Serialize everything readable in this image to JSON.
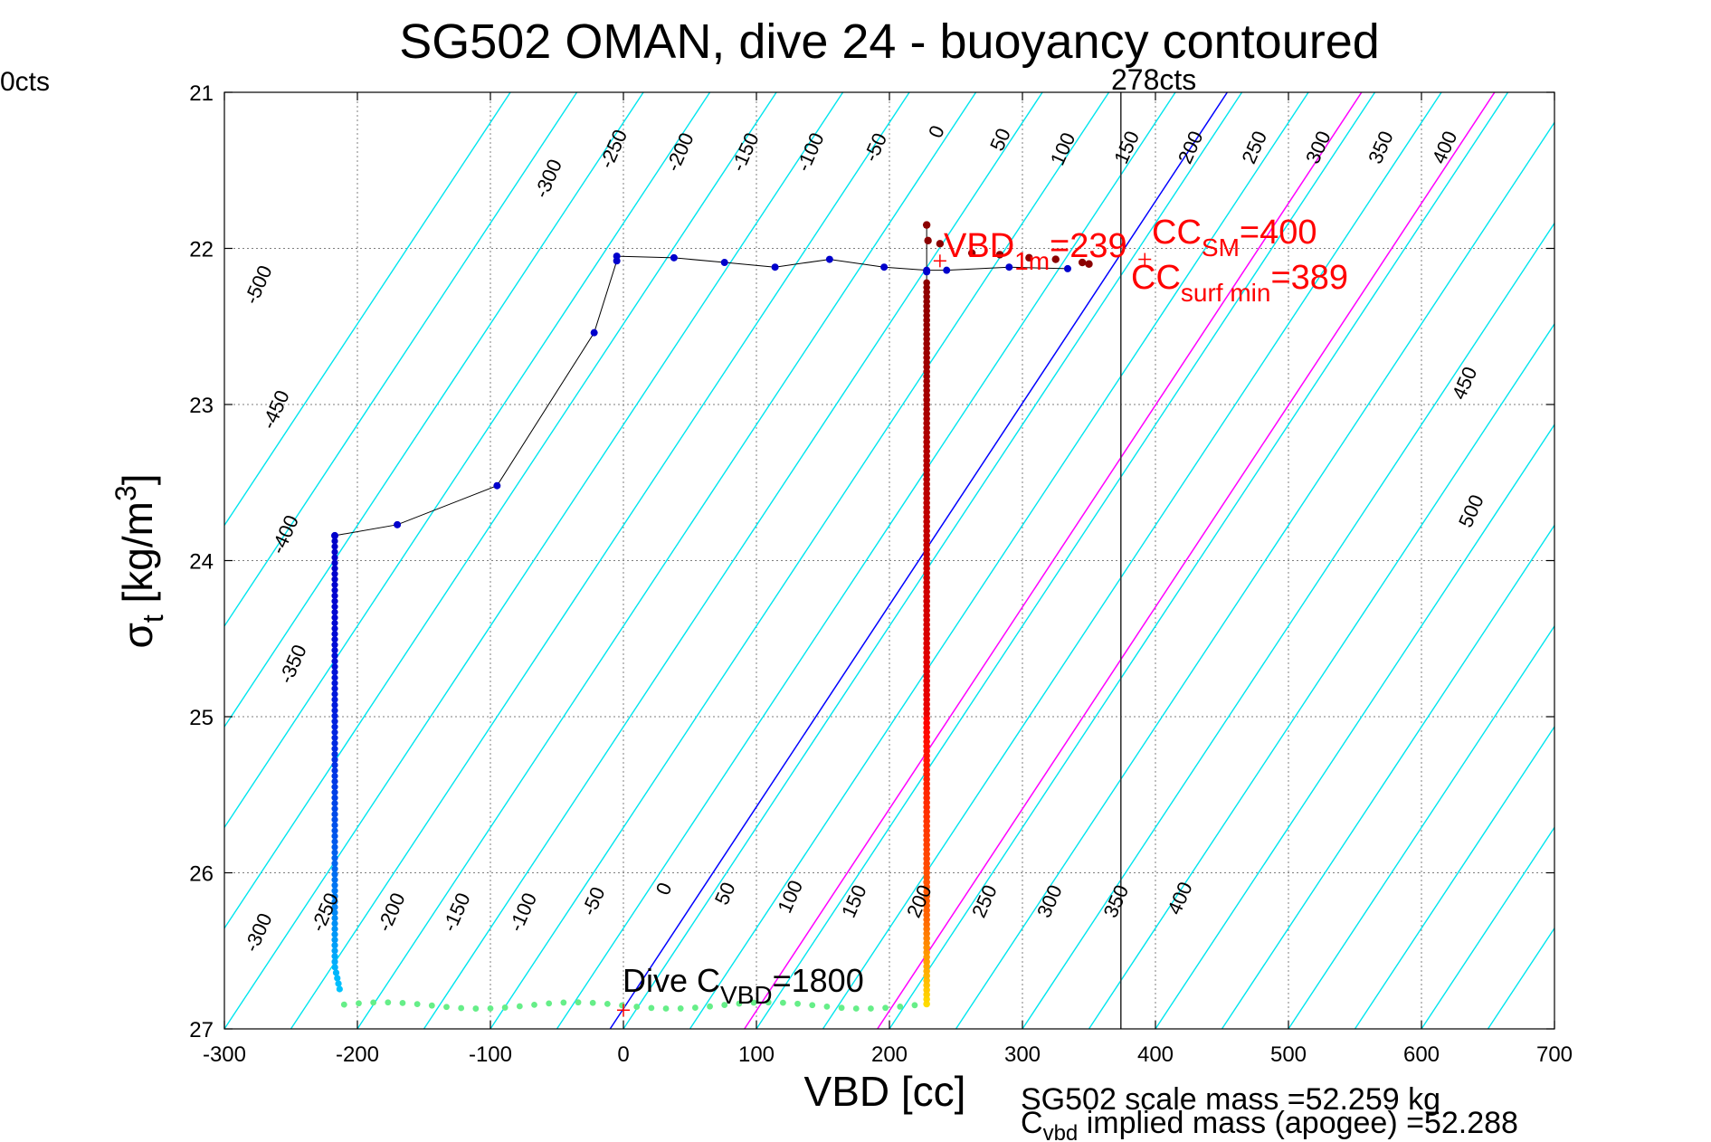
{
  "chart_data": {
    "type": "scatter",
    "title": "SG502 OMAN, dive 24 - buoyancy contoured",
    "xlabel": "VBD [cc]",
    "ylabel_main": "σ",
    "ylabel_sub": "t",
    "ylabel_rest": " [kg/m",
    "ylabel_sup": "3",
    "ylabel_end": "]",
    "xlim": [
      -300,
      700
    ],
    "ylim": [
      21,
      27
    ],
    "y_reversed": true,
    "grid": true,
    "xticks": [
      -300,
      -200,
      -100,
      0,
      100,
      200,
      300,
      400,
      500,
      600,
      700
    ],
    "yticks": [
      21,
      22,
      23,
      24,
      25,
      26,
      27
    ],
    "contour_slope_cc_per_sigma": 77.5,
    "contour_levels": [
      -550,
      -500,
      -450,
      -400,
      -350,
      -300,
      -250,
      -200,
      -150,
      -100,
      -50,
      0,
      50,
      100,
      150,
      200,
      250,
      300,
      350,
      400,
      450,
      500,
      550,
      600,
      650,
      700,
      750,
      800
    ],
    "top_contour_labels": [
      {
        "label": "-300",
        "x": -52,
        "y": 21.57
      },
      {
        "label": "-250",
        "x": -3,
        "y": 21.38
      },
      {
        "label": "-200",
        "x": 47,
        "y": 21.4
      },
      {
        "label": "-150",
        "x": 96,
        "y": 21.4
      },
      {
        "label": "-100",
        "x": 145,
        "y": 21.4
      },
      {
        "label": "-50",
        "x": 194,
        "y": 21.37
      },
      {
        "label": "0",
        "x": 240,
        "y": 21.27
      },
      {
        "label": "50",
        "x": 288,
        "y": 21.32
      },
      {
        "label": "100",
        "x": 335,
        "y": 21.38
      },
      {
        "label": "150",
        "x": 383,
        "y": 21.37
      },
      {
        "label": "200",
        "x": 431,
        "y": 21.37
      },
      {
        "label": "250",
        "x": 479,
        "y": 21.37
      },
      {
        "label": "300",
        "x": 527,
        "y": 21.37
      },
      {
        "label": "350",
        "x": 574,
        "y": 21.37
      },
      {
        "label": "400",
        "x": 622,
        "y": 21.37
      }
    ],
    "left_contour_labels": [
      {
        "label": "-500",
        "x": -270,
        "y": 22.25
      },
      {
        "label": "-450",
        "x": -257,
        "y": 23.05
      },
      {
        "label": "-400",
        "x": -250,
        "y": 23.85
      },
      {
        "label": "-350",
        "x": -244,
        "y": 24.68
      },
      {
        "label": "-300",
        "x": -270,
        "y": 26.4
      }
    ],
    "right_contour_labels": [
      {
        "label": "450",
        "x": 637,
        "y": 22.88
      },
      {
        "label": "500",
        "x": 642,
        "y": 23.7
      }
    ],
    "bottom_contour_labels": [
      {
        "label": "-250",
        "x": -220,
        "y": 26.27
      },
      {
        "label": "-200",
        "x": -170,
        "y": 26.27
      },
      {
        "label": "-150",
        "x": -121,
        "y": 26.27
      },
      {
        "label": "-100",
        "x": -71,
        "y": 26.27
      },
      {
        "label": "-50",
        "x": -18,
        "y": 26.2
      },
      {
        "label": "0",
        "x": 35,
        "y": 26.12
      },
      {
        "label": "50",
        "x": 81,
        "y": 26.15
      },
      {
        "label": "100",
        "x": 130,
        "y": 26.17
      },
      {
        "label": "150",
        "x": 178,
        "y": 26.2
      },
      {
        "label": "200",
        "x": 227,
        "y": 26.2
      },
      {
        "label": "250",
        "x": 276,
        "y": 26.2
      },
      {
        "label": "300",
        "x": 325,
        "y": 26.2
      },
      {
        "label": "350",
        "x": 375,
        "y": 26.2
      },
      {
        "label": "400",
        "x": 423,
        "y": 26.18
      }
    ],
    "magenta_lines": [
      {
        "x0": 91,
        "x1": 555
      },
      {
        "x0": 191,
        "x1": 655
      }
    ],
    "blue_line": {
      "x0": -10,
      "x1": 454
    },
    "vline_x": 374,
    "vline_label": "278cts",
    "left_edge_label": "0cts",
    "descent_profile": [
      [
        -5,
        22.05
      ],
      [
        -5,
        22.08
      ],
      [
        38,
        22.06
      ],
      [
        76,
        22.09
      ],
      [
        114,
        22.12
      ],
      [
        155,
        22.07
      ],
      [
        196,
        22.12
      ],
      [
        228,
        22.14
      ],
      [
        -22,
        22.54
      ],
      [
        -95,
        23.52
      ],
      [
        -170,
        23.77
      ],
      [
        -217,
        23.84
      ]
    ],
    "ascent_profile": [
      [
        228,
        22.15
      ],
      [
        243,
        22.14
      ],
      [
        290,
        22.12
      ],
      [
        334,
        22.13
      ]
    ],
    "climb_curve": [
      [
        228,
        21.85
      ],
      [
        229,
        21.95
      ],
      [
        238,
        21.97
      ],
      [
        262,
        22.03
      ],
      [
        283,
        22.04
      ],
      [
        305,
        22.06
      ],
      [
        325,
        22.07
      ],
      [
        345,
        22.09
      ],
      [
        350,
        22.1
      ]
    ],
    "annotations": {
      "vbd1m_main": "VBD",
      "vbd1m_sub": "1m",
      "vbd1m_val": "=239",
      "ccsm_main": "CC",
      "ccsm_sub": "SM",
      "ccsm_val": "=400",
      "ccsurf_main": "CC",
      "ccsurf_sub": "surf min",
      "ccsurf_val": "=389",
      "dive_main": "Dive C",
      "dive_sub": "VBD",
      "dive_val": "=1800"
    },
    "footer": {
      "scale_mass": "SG502 scale mass =52.259 kg",
      "implied_main": "C",
      "implied_sub": "vbd",
      "implied_rest": " implied mass (apogee) =52.288"
    },
    "colors": {
      "contour": "#00e5ee",
      "magenta": "#ff00ff",
      "blue_line": "#0000ff",
      "annotation": "#ff0000",
      "profile_line": "#000000",
      "descent_points": "#0000cc",
      "climb_points": "#8b0000"
    }
  }
}
